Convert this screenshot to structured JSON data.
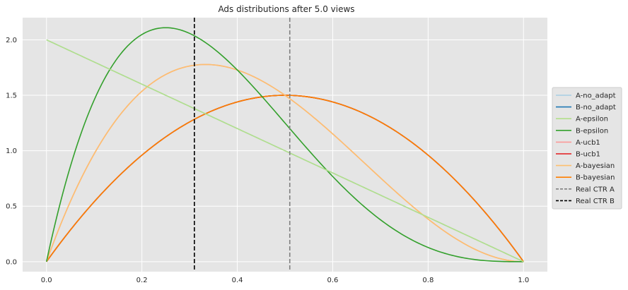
{
  "chart_data": {
    "type": "line",
    "title": "Ads distributions after 5.0 views",
    "xlabel": "",
    "ylabel": "",
    "xlim": [
      -0.05,
      1.05
    ],
    "ylim": [
      -0.09,
      2.2
    ],
    "xticks": [
      0.0,
      0.2,
      0.4,
      0.6,
      0.8,
      1.0
    ],
    "xtick_labels": [
      "0.0",
      "0.2",
      "0.4",
      "0.6",
      "0.8",
      "1.0"
    ],
    "yticks": [
      0.0,
      0.5,
      1.0,
      1.5,
      2.0
    ],
    "ytick_labels": [
      "0.0",
      "0.5",
      "1.0",
      "1.5",
      "2.0"
    ],
    "grid": true,
    "background": "#e5e5e5",
    "legend_position": "right-outside",
    "series": [
      {
        "name": "A-no_adapt",
        "color": "#a6cee3",
        "style": "solid",
        "distribution": "beta",
        "alpha": 1,
        "beta": 2
      },
      {
        "name": "B-no_adapt",
        "color": "#1f78b4",
        "style": "solid",
        "distribution": "beta",
        "alpha": 2,
        "beta": 2
      },
      {
        "name": "A-epsilon",
        "color": "#b2df8a",
        "style": "solid",
        "distribution": "beta",
        "alpha": 1,
        "beta": 2
      },
      {
        "name": "B-epsilon",
        "color": "#33a02c",
        "style": "solid",
        "distribution": "beta",
        "alpha": 2,
        "beta": 4
      },
      {
        "name": "A-ucb1",
        "color": "#fb9a99",
        "style": "solid",
        "distribution": "beta",
        "alpha": 2,
        "beta": 3
      },
      {
        "name": "B-ucb1",
        "color": "#e31a1c",
        "style": "solid",
        "distribution": "beta",
        "alpha": 2,
        "beta": 2
      },
      {
        "name": "A-bayesian",
        "color": "#fdbf6f",
        "style": "solid",
        "distribution": "beta",
        "alpha": 2,
        "beta": 3
      },
      {
        "name": "B-bayesian",
        "color": "#ff7f00",
        "style": "solid",
        "distribution": "beta",
        "alpha": 2,
        "beta": 2
      }
    ],
    "draw_order": [
      "B-no_adapt",
      "A-no_adapt",
      "B-ucb1",
      "B-bayesian",
      "A-ucb1",
      "A-bayesian",
      "B-epsilon",
      "A-epsilon"
    ],
    "vlines": [
      {
        "name": "Real CTR A",
        "x": 0.51,
        "color": "#808080",
        "style": "dashed"
      },
      {
        "name": "Real CTR B",
        "x": 0.31,
        "color": "#000000",
        "style": "dashed"
      }
    ]
  }
}
